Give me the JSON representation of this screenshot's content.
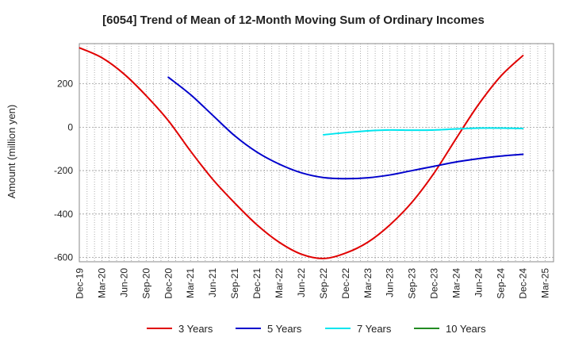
{
  "chart_data": {
    "type": "line",
    "title": "[6054]  Trend of Mean of 12-Month Moving Sum of Ordinary Incomes",
    "xlabel": "",
    "ylabel": "Amount (million yen)",
    "ylim": [
      -620,
      385
    ],
    "yticks": [
      -600,
      -400,
      -200,
      0,
      200
    ],
    "ytick_labels": [
      "-600",
      "-400",
      "-200",
      "0",
      "200"
    ],
    "x_tick_labels": [
      "Dec-19",
      "Mar-20",
      "Jun-20",
      "Sep-20",
      "Dec-20",
      "Mar-21",
      "Jun-21",
      "Sep-21",
      "Dec-21",
      "Mar-22",
      "Jun-22",
      "Sep-22",
      "Dec-22",
      "Mar-23",
      "Jun-23",
      "Sep-23",
      "Dec-23",
      "Mar-24",
      "Jun-24",
      "Sep-24",
      "Dec-24",
      "Mar-25"
    ],
    "grid": true,
    "legend_position": "bottom",
    "series": [
      {
        "name": "3 Years",
        "color": "#e00000",
        "x": [
          0,
          1,
          2,
          3,
          4,
          5,
          6,
          7,
          8,
          9,
          10,
          11,
          12,
          13,
          14,
          15,
          16,
          17,
          18,
          19,
          20
        ],
        "values": [
          365,
          320,
          245,
          145,
          30,
          -110,
          -240,
          -350,
          -450,
          -530,
          -585,
          -605,
          -580,
          -530,
          -450,
          -345,
          -210,
          -50,
          105,
          235,
          330
        ]
      },
      {
        "name": "5 Years",
        "color": "#0000cc",
        "x": [
          4,
          5,
          6,
          7,
          8,
          9,
          10,
          11,
          12,
          13,
          14,
          15,
          16,
          17,
          18,
          19,
          20
        ],
        "values": [
          230,
          150,
          55,
          -40,
          -115,
          -170,
          -210,
          -232,
          -237,
          -233,
          -220,
          -200,
          -180,
          -160,
          -145,
          -133,
          -125
        ]
      },
      {
        "name": "7 Years",
        "color": "#00e5ee",
        "x": [
          11,
          12,
          13,
          14,
          15,
          16,
          17,
          18,
          19,
          20
        ],
        "values": [
          -35,
          -25,
          -17,
          -13,
          -14,
          -13,
          -8,
          -4,
          -4,
          -6
        ]
      },
      {
        "name": "10 Years",
        "color": "#228b22",
        "x": [],
        "values": []
      }
    ]
  }
}
